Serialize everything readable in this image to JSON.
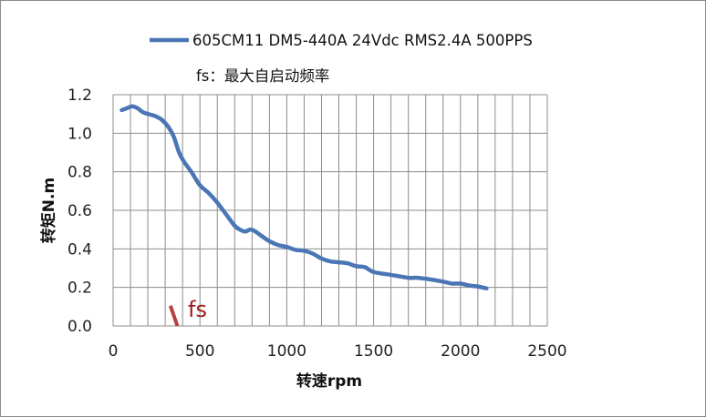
{
  "chart_data": {
    "type": "line",
    "title": "",
    "xlabel": "转速rpm",
    "ylabel": "转矩N.m",
    "xlim": [
      0,
      2500
    ],
    "ylim": [
      0,
      1.2
    ],
    "x_ticks": [
      "0",
      "500",
      "1000",
      "1500",
      "2000",
      "2500"
    ],
    "y_ticks": [
      "0.0",
      "0.2",
      "0.4",
      "0.6",
      "0.8",
      "1.0",
      "1.2"
    ],
    "grid": true,
    "legend_position": "top",
    "series": [
      {
        "name": "605CM11 DM5-440A 24Vdc RMS2.4A 500PPS",
        "color": "#4a76b5",
        "x": [
          50,
          80,
          110,
          140,
          170,
          200,
          240,
          280,
          320,
          350,
          380,
          410,
          450,
          500,
          550,
          600,
          650,
          700,
          730,
          760,
          790,
          820,
          850,
          900,
          950,
          1000,
          1050,
          1100,
          1150,
          1200,
          1250,
          1300,
          1350,
          1400,
          1450,
          1500,
          1600,
          1700,
          1750,
          1800,
          1900,
          1950,
          2000,
          2050,
          2100,
          2150
        ],
        "y": [
          1.12,
          1.13,
          1.14,
          1.13,
          1.11,
          1.1,
          1.09,
          1.07,
          1.03,
          0.98,
          0.9,
          0.85,
          0.8,
          0.73,
          0.69,
          0.64,
          0.58,
          0.52,
          0.5,
          0.49,
          0.5,
          0.49,
          0.47,
          0.44,
          0.42,
          0.41,
          0.395,
          0.39,
          0.375,
          0.35,
          0.335,
          0.33,
          0.325,
          0.31,
          0.305,
          0.28,
          0.265,
          0.25,
          0.25,
          0.245,
          0.23,
          0.22,
          0.22,
          0.21,
          0.205,
          0.195
        ]
      }
    ],
    "annotations": {
      "legend_note": "fs：最大自启动频率",
      "marker_label": "fs",
      "marker_color": "#b84040",
      "marker_x": [
        330,
        370
      ],
      "marker_y": [
        0.105,
        0.0
      ]
    }
  }
}
